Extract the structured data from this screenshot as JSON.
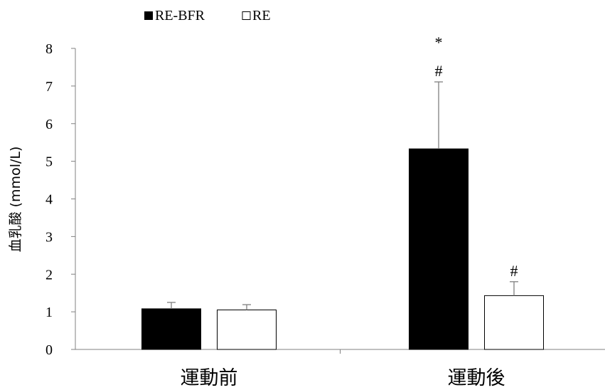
{
  "chart_data": {
    "type": "bar",
    "title": "",
    "xlabel": "",
    "ylabel": "血乳酸 (mmol/L)",
    "ylim": [
      0,
      8
    ],
    "yticks": [
      "0",
      "1",
      "2",
      "3",
      "4",
      "5",
      "6",
      "7",
      "8"
    ],
    "grid": false,
    "legend_position": "top-left",
    "categories": [
      "運動前",
      "運動後"
    ],
    "series": [
      {
        "name": "RE-BFR",
        "color": "#000000",
        "fill": "#000000",
        "values": [
          1.08,
          5.33
        ],
        "error": [
          0.17,
          1.78
        ]
      },
      {
        "name": "RE",
        "color": "#000000",
        "fill": "#ffffff",
        "values": [
          1.05,
          1.43
        ],
        "error": [
          0.14,
          0.37
        ]
      }
    ],
    "annotations": [
      {
        "category": 1,
        "series": 0,
        "lines": [
          "*",
          "#"
        ]
      },
      {
        "category": 1,
        "series": 1,
        "lines": [
          "#"
        ]
      }
    ]
  }
}
